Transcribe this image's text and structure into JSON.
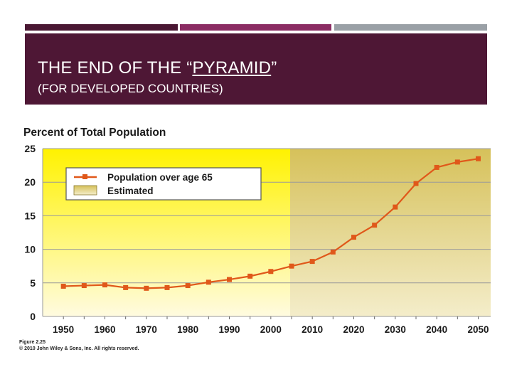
{
  "slide": {
    "title_prefix": "THE END OF THE “",
    "title_underlined": "PYRAMID",
    "title_suffix": "”",
    "subtitle": "(FOR DEVELOPED COUNTRIES)",
    "figure_label": "Figure 2.25",
    "copyright": "© 2010 John Wiley & Sons, Inc. All rights reserved."
  },
  "colors": {
    "header_bg": "#4e1735",
    "bar1": "#4a1733",
    "bar2": "#8b2c63",
    "bar3": "#9aa0a6",
    "series": "#e0581a",
    "actual_bg_top": "#fff200",
    "actual_bg_bottom": "#fffbe0",
    "estimated_bg_top": "#d6c15a",
    "estimated_bg_bottom": "#f4edca"
  },
  "chart_data": {
    "type": "line",
    "title": "Percent of Total Population",
    "x": [
      1950,
      1955,
      1960,
      1965,
      1970,
      1975,
      1980,
      1985,
      1990,
      1995,
      2000,
      2005,
      2010,
      2015,
      2020,
      2025,
      2030,
      2035,
      2040,
      2045,
      2050
    ],
    "series": [
      {
        "name": "Population over age 65",
        "values": [
          4.5,
          4.6,
          4.7,
          4.3,
          4.2,
          4.3,
          4.6,
          5.1,
          5.5,
          6.0,
          6.7,
          7.5,
          8.2,
          9.6,
          11.8,
          13.6,
          16.3,
          19.8,
          22.2,
          23.0,
          23.5
        ]
      }
    ],
    "estimated_label": "Estimated",
    "estimated_from": 2005,
    "xlim": [
      1945,
      2053
    ],
    "ylim": [
      0,
      25
    ],
    "yticks": [
      0,
      5,
      10,
      15,
      20,
      25
    ],
    "xticks": [
      1950,
      1960,
      1970,
      1980,
      1990,
      2000,
      2010,
      2020,
      2030,
      2040,
      2050
    ],
    "grid": true,
    "legend_position": "top-left"
  }
}
